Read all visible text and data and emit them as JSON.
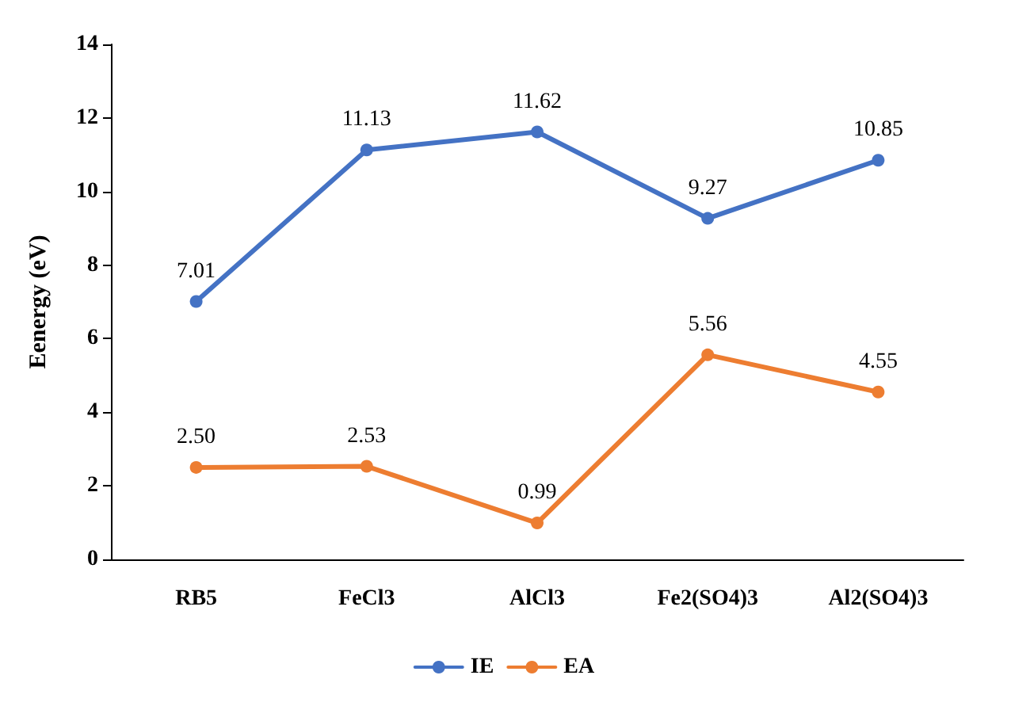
{
  "chart_data": {
    "type": "line",
    "ylabel": "Eenergy (eV)",
    "categories": [
      "RB5",
      "FeCl3",
      "AlCl3",
      "Fe2(SO4)3",
      "Al2(SO4)3"
    ],
    "series": [
      {
        "name": "IE",
        "color": "#4472c4",
        "values": [
          7.01,
          11.13,
          11.62,
          9.27,
          10.85
        ],
        "value_labels": [
          "7.01",
          "11.13",
          "11.62",
          "9.27",
          "10.85"
        ]
      },
      {
        "name": "EA",
        "color": "#ed7d31",
        "values": [
          2.5,
          2.53,
          0.99,
          5.56,
          4.55
        ],
        "value_labels": [
          "2.50",
          "2.53",
          "0.99",
          "5.56",
          "4.55"
        ]
      }
    ],
    "ylim": [
      0,
      14
    ],
    "yticks": [
      0,
      2,
      4,
      6,
      8,
      10,
      12,
      14
    ],
    "grid": false,
    "legend": "bottom",
    "marker": "circle",
    "line_style": "solid"
  }
}
